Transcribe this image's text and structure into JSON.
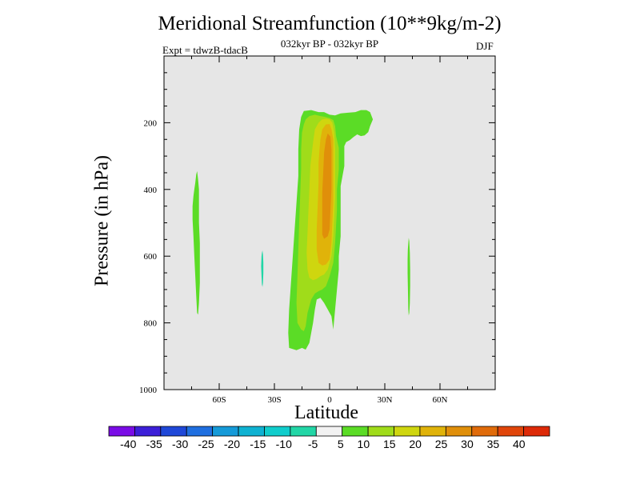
{
  "chart_data": {
    "type": "contour",
    "title": "Meridional Streamfunction (10**9kg/m-2)",
    "subtitle": "032kyr BP - 032kyr BP",
    "experiment": "Expt = tdwzB-tdacB",
    "season": "DJF",
    "xlabel": "Latitude",
    "ylabel": "Pressure (in hPa)",
    "x_range": [
      -90,
      90
    ],
    "y_range": [
      0,
      1000
    ],
    "x_ticks": [
      {
        "value": -60,
        "label": "60S"
      },
      {
        "value": -30,
        "label": "30S"
      },
      {
        "value": 0,
        "label": "0"
      },
      {
        "value": 30,
        "label": "30N"
      },
      {
        "value": 60,
        "label": "60N"
      }
    ],
    "y_ticks": [
      {
        "value": 200,
        "label": "200"
      },
      {
        "value": 400,
        "label": "400"
      },
      {
        "value": 600,
        "label": "600"
      },
      {
        "value": 800,
        "label": "800"
      },
      {
        "value": 1000,
        "label": "1000"
      }
    ],
    "colorbar": {
      "labels": [
        "-40",
        "-35",
        "-30",
        "-25",
        "-20",
        "-15",
        "-10",
        "-5",
        "5",
        "10",
        "15",
        "20",
        "25",
        "30",
        "35",
        "40"
      ],
      "colors": [
        "#7a0ce6",
        "#3c1fd8",
        "#1f48d8",
        "#1f6fe0",
        "#159ad8",
        "#0fb2d2",
        "#10cdcc",
        "#22d6a6",
        "#f2f2f2",
        "#5bdc26",
        "#a0dc1a",
        "#cfd60f",
        "#e0b30a",
        "#e08f0a",
        "#e06b0a",
        "#e0450a",
        "#dd2a08"
      ]
    },
    "contours": [
      {
        "name": "main-cell-5",
        "color": "#5bdc26",
        "points": [
          [
            -15.5,
            183
          ],
          [
            -14,
            165
          ],
          [
            -10,
            162
          ],
          [
            -6,
            168
          ],
          [
            -3,
            168
          ],
          [
            0,
            176
          ],
          [
            3,
            178
          ],
          [
            6,
            172
          ],
          [
            10,
            170
          ],
          [
            14,
            168
          ],
          [
            17,
            162
          ],
          [
            20,
            162
          ],
          [
            22,
            168
          ],
          [
            23.5,
            190
          ],
          [
            22,
            210
          ],
          [
            21,
            228
          ],
          [
            19,
            238
          ],
          [
            17,
            240
          ],
          [
            15,
            235
          ],
          [
            13,
            243
          ],
          [
            11,
            252
          ],
          [
            9,
            258
          ],
          [
            8,
            270
          ],
          [
            8,
            290
          ],
          [
            8,
            310
          ],
          [
            8,
            330
          ],
          [
            7,
            360
          ],
          [
            6,
            390
          ],
          [
            6,
            430
          ],
          [
            6,
            480
          ],
          [
            6,
            540
          ],
          [
            5,
            600
          ],
          [
            5,
            640
          ],
          [
            4,
            700
          ],
          [
            3,
            760
          ],
          [
            2,
            820
          ],
          [
            1,
            780
          ],
          [
            -1,
            760
          ],
          [
            -3,
            740
          ],
          [
            -5,
            725
          ],
          [
            -7,
            730
          ],
          [
            -8,
            760
          ],
          [
            -9,
            800
          ],
          [
            -11,
            860
          ],
          [
            -13,
            880
          ],
          [
            -15,
            875
          ],
          [
            -18,
            882
          ],
          [
            -22,
            875
          ],
          [
            -22.5,
            830
          ],
          [
            -22,
            760
          ],
          [
            -21,
            680
          ],
          [
            -20,
            600
          ],
          [
            -19,
            520
          ],
          [
            -18,
            440
          ],
          [
            -17,
            360
          ],
          [
            -17,
            280
          ],
          [
            -16.5,
            220
          ]
        ]
      },
      {
        "name": "main-cell-10",
        "color": "#a0dc1a",
        "points": [
          [
            -15,
            230
          ],
          [
            -14,
            205
          ],
          [
            -13,
            190
          ],
          [
            -11,
            180
          ],
          [
            -8,
            176
          ],
          [
            -5,
            180
          ],
          [
            -3,
            182
          ],
          [
            0,
            186
          ],
          [
            2,
            192
          ],
          [
            3,
            210
          ],
          [
            3.5,
            240
          ],
          [
            5,
            275
          ],
          [
            5,
            340
          ],
          [
            4,
            400
          ],
          [
            4,
            460
          ],
          [
            3,
            560
          ],
          [
            2,
            620
          ],
          [
            0,
            660
          ],
          [
            -2,
            690
          ],
          [
            -4,
            700
          ],
          [
            -6,
            705
          ],
          [
            -8,
            712
          ],
          [
            -10,
            730
          ],
          [
            -12,
            770
          ],
          [
            -13,
            810
          ],
          [
            -14,
            825
          ],
          [
            -15.5,
            820
          ],
          [
            -17.5,
            800
          ],
          [
            -18,
            740
          ],
          [
            -17.5,
            660
          ],
          [
            -17,
            580
          ],
          [
            -16.5,
            500
          ],
          [
            -16,
            420
          ],
          [
            -15.5,
            340
          ],
          [
            -15.5,
            280
          ]
        ]
      },
      {
        "name": "main-cell-15",
        "color": "#cfd60f",
        "points": [
          [
            -9,
            260
          ],
          [
            -8,
            220
          ],
          [
            -6,
            200
          ],
          [
            -4,
            190
          ],
          [
            -2,
            188
          ],
          [
            0,
            190
          ],
          [
            1.5,
            200
          ],
          [
            2.5,
            230
          ],
          [
            3,
            280
          ],
          [
            3,
            340
          ],
          [
            3,
            420
          ],
          [
            2.5,
            480
          ],
          [
            2,
            540
          ],
          [
            1,
            600
          ],
          [
            -1,
            640
          ],
          [
            -3,
            655
          ],
          [
            -5,
            660
          ],
          [
            -7,
            668
          ],
          [
            -9,
            672
          ],
          [
            -11,
            665
          ],
          [
            -12,
            640
          ],
          [
            -12.5,
            590
          ],
          [
            -12,
            530
          ],
          [
            -11.5,
            460
          ],
          [
            -11,
            400
          ],
          [
            -10.5,
            330
          ]
        ]
      },
      {
        "name": "main-cell-20",
        "color": "#e0b30a",
        "points": [
          [
            -5,
            250
          ],
          [
            -4,
            220
          ],
          [
            -2,
            205
          ],
          [
            0,
            204
          ],
          [
            1,
            220
          ],
          [
            2,
            250
          ],
          [
            2,
            300
          ],
          [
            2,
            360
          ],
          [
            2,
            440
          ],
          [
            1.5,
            500
          ],
          [
            1,
            560
          ],
          [
            0,
            610
          ],
          [
            -2,
            625
          ],
          [
            -4,
            628
          ],
          [
            -6,
            620
          ],
          [
            -7,
            580
          ],
          [
            -7,
            520
          ],
          [
            -6.5,
            450
          ],
          [
            -6,
            380
          ],
          [
            -6,
            320
          ],
          [
            -5.5,
            280
          ]
        ]
      },
      {
        "name": "main-cell-25",
        "color": "#e08f0a",
        "points": [
          [
            -3,
            290
          ],
          [
            -2,
            250
          ],
          [
            -1,
            232
          ],
          [
            0.5,
            242
          ],
          [
            1,
            280
          ],
          [
            1,
            340
          ],
          [
            1,
            400
          ],
          [
            0.5,
            460
          ],
          [
            0,
            520
          ],
          [
            -1,
            540
          ],
          [
            -3,
            548
          ],
          [
            -4,
            535
          ],
          [
            -4,
            470
          ],
          [
            -4,
            410
          ],
          [
            -3.5,
            350
          ]
        ]
      },
      {
        "name": "sh-blob-5",
        "color": "#5bdc26",
        "points": [
          [
            -74.5,
            450
          ],
          [
            -74,
            420
          ],
          [
            -73.5,
            400
          ],
          [
            -73,
            380
          ],
          [
            -72.5,
            355
          ],
          [
            -72,
            345
          ],
          [
            -71.5,
            370
          ],
          [
            -71,
            400
          ],
          [
            -71,
            450
          ],
          [
            -71,
            500
          ],
          [
            -70.5,
            560
          ],
          [
            -70.5,
            620
          ],
          [
            -70.5,
            680
          ],
          [
            -71,
            740
          ],
          [
            -71.5,
            775
          ],
          [
            -72,
            770
          ],
          [
            -72.5,
            720
          ],
          [
            -73,
            660
          ],
          [
            -73.5,
            600
          ],
          [
            -74,
            540
          ],
          [
            -74.5,
            490
          ]
        ]
      },
      {
        "name": "sh-blob-neg5",
        "color": "#22d6a6",
        "points": [
          [
            -37,
            600
          ],
          [
            -36.8,
            590
          ],
          [
            -36.5,
            583
          ],
          [
            -36.2,
            595
          ],
          [
            -36,
            620
          ],
          [
            -36,
            650
          ],
          [
            -36.2,
            680
          ],
          [
            -36.5,
            692
          ],
          [
            -36.8,
            685
          ],
          [
            -37,
            660
          ],
          [
            -37.2,
            630
          ]
        ]
      },
      {
        "name": "nh-blob-5",
        "color": "#5bdc26",
        "points": [
          [
            42.5,
            580
          ],
          [
            42.8,
            560
          ],
          [
            43,
            545
          ],
          [
            43.3,
            555
          ],
          [
            43.6,
            590
          ],
          [
            43.8,
            640
          ],
          [
            43.8,
            690
          ],
          [
            43.6,
            740
          ],
          [
            43.3,
            770
          ],
          [
            43,
            778
          ],
          [
            42.8,
            760
          ],
          [
            42.6,
            710
          ],
          [
            42.4,
            650
          ],
          [
            42.4,
            610
          ]
        ]
      }
    ]
  }
}
